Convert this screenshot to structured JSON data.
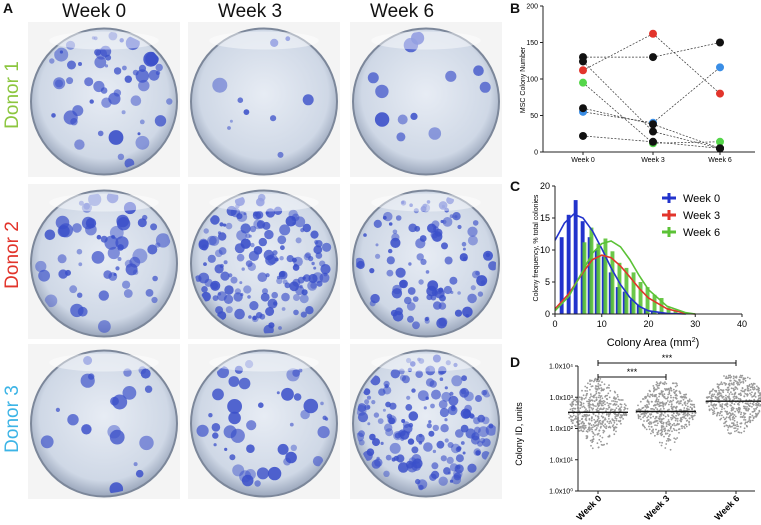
{
  "panelA": {
    "letter": "A",
    "columns": [
      "Week 0",
      "Week 3",
      "Week 6"
    ],
    "rows": [
      {
        "label": "Donor 1",
        "color": "#8cc63f",
        "densities": [
          55,
          10,
          12
        ]
      },
      {
        "label": "Donor 2",
        "color": "#e2342b",
        "densities": [
          60,
          160,
          110
        ]
      },
      {
        "label": "Donor 3",
        "color": "#3cb4e6",
        "densities": [
          20,
          45,
          170
        ]
      }
    ],
    "plate_blue": "#3a4fc9"
  },
  "panelB": {
    "letter": "B",
    "ylabel": "MSC Colony Number",
    "categories": [
      "Week 0",
      "Week 3",
      "Week 6"
    ],
    "yticks": [
      0,
      50,
      100,
      150,
      200
    ],
    "ylim": [
      0,
      200
    ],
    "chart_data": {
      "type": "scatter",
      "series": [
        {
          "name": "red",
          "color": "#e2342b",
          "values": [
            112,
            162,
            80
          ]
        },
        {
          "name": "blue",
          "color": "#3a8ee6",
          "values": [
            55,
            40,
            116
          ]
        },
        {
          "name": "green",
          "color": "#55d64a",
          "values": [
            95,
            12,
            14
          ]
        },
        {
          "name": "black1",
          "color": "#111111",
          "values": [
            130,
            130,
            150
          ]
        },
        {
          "name": "black2",
          "color": "#111111",
          "values": [
            124,
            28,
            5
          ]
        },
        {
          "name": "black3",
          "color": "#111111",
          "values": [
            60,
            38,
            5
          ]
        },
        {
          "name": "black4",
          "color": "#111111",
          "values": [
            22,
            14,
            5
          ]
        }
      ]
    }
  },
  "panelC": {
    "letter": "C",
    "ylabel": "Colony frequency, % total colonies",
    "xlabel": "Colony Area (mm",
    "xlabel_sup": "2",
    "xlabel_end": ")",
    "xticks": [
      0,
      10,
      20,
      30,
      40
    ],
    "yticks": [
      0,
      5,
      10,
      15,
      20
    ],
    "xlim": [
      0,
      40
    ],
    "ylim": [
      0,
      20
    ],
    "legend": [
      {
        "label": "Week 0",
        "color": "#2233cc"
      },
      {
        "label": "Week 3",
        "color": "#e2342b"
      },
      {
        "label": "Week 6",
        "color": "#5bc236"
      }
    ],
    "chart_data": {
      "type": "bar",
      "bin_width": 1.5,
      "series": [
        {
          "name": "Week 0",
          "color": "#2233cc",
          "x": [
            1.5,
            3,
            4.5,
            6,
            7.5,
            9,
            10.5,
            12,
            13.5,
            15,
            16.5,
            18,
            19.5,
            21,
            22.5,
            24
          ],
          "values": [
            12,
            15.5,
            17.8,
            14.5,
            12,
            10,
            9,
            6.5,
            4.2,
            3.5,
            2.3,
            1.5,
            0.7,
            0.4,
            0.2,
            0.1
          ]
        },
        {
          "name": "Week 6",
          "color": "#5bc236",
          "x": [
            6,
            7.5,
            9,
            10.5,
            12,
            13.5,
            15,
            16.5,
            18,
            19.5,
            21,
            22.5,
            24,
            25.5
          ],
          "values": [
            11.2,
            13.5,
            11,
            11.8,
            9.8,
            8,
            7.2,
            6.5,
            5,
            4.2,
            3,
            2.5,
            1,
            0.6
          ]
        }
      ],
      "fits": [
        {
          "name": "Week 0",
          "color": "#2233cc",
          "x": [
            0,
            2,
            4,
            6,
            8,
            10,
            12,
            14,
            16,
            18,
            20,
            24,
            28
          ],
          "values": [
            11.5,
            14.2,
            15.6,
            15,
            13,
            10.2,
            7.2,
            4.6,
            2.6,
            1.2,
            0.5,
            0.1,
            0
          ]
        },
        {
          "name": "Week 3",
          "color": "#e2342b",
          "x": [
            0,
            3,
            6,
            8,
            10,
            12,
            14,
            16,
            18,
            20,
            24,
            28,
            30
          ],
          "values": [
            0.8,
            3.2,
            6.5,
            8.5,
            9.2,
            8.8,
            7.5,
            5.8,
            4,
            2.5,
            0.8,
            0.1,
            0
          ]
        },
        {
          "name": "Week 6",
          "color": "#5bc236",
          "x": [
            0,
            3,
            6,
            8,
            10,
            12,
            14,
            16,
            18,
            20,
            24,
            28,
            30
          ],
          "values": [
            0.5,
            2.8,
            6.8,
            9.5,
            11,
            11.4,
            10.5,
            8.5,
            6,
            3.8,
            1.2,
            0.2,
            0
          ]
        }
      ]
    }
  },
  "panelD": {
    "letter": "D",
    "ylabel": "Colony ID, units",
    "categories": [
      "Week 0",
      "Week 3",
      "Week 6"
    ],
    "ytick_labels": [
      "1.0x10⁰",
      "1.0x10¹",
      "1.0x10²",
      "1.0x10³",
      "1.0x10⁴"
    ],
    "sig": [
      "***",
      "***"
    ],
    "chart_data": {
      "type": "scatter",
      "scale": "log10",
      "medians": [
        330,
        350,
        750
      ],
      "spread_min_exp": [
        1.3,
        1.3,
        1.6
      ],
      "spread_max_exp": [
        3.6,
        3.5,
        3.7
      ],
      "point_color": "#9a9a9a"
    }
  }
}
